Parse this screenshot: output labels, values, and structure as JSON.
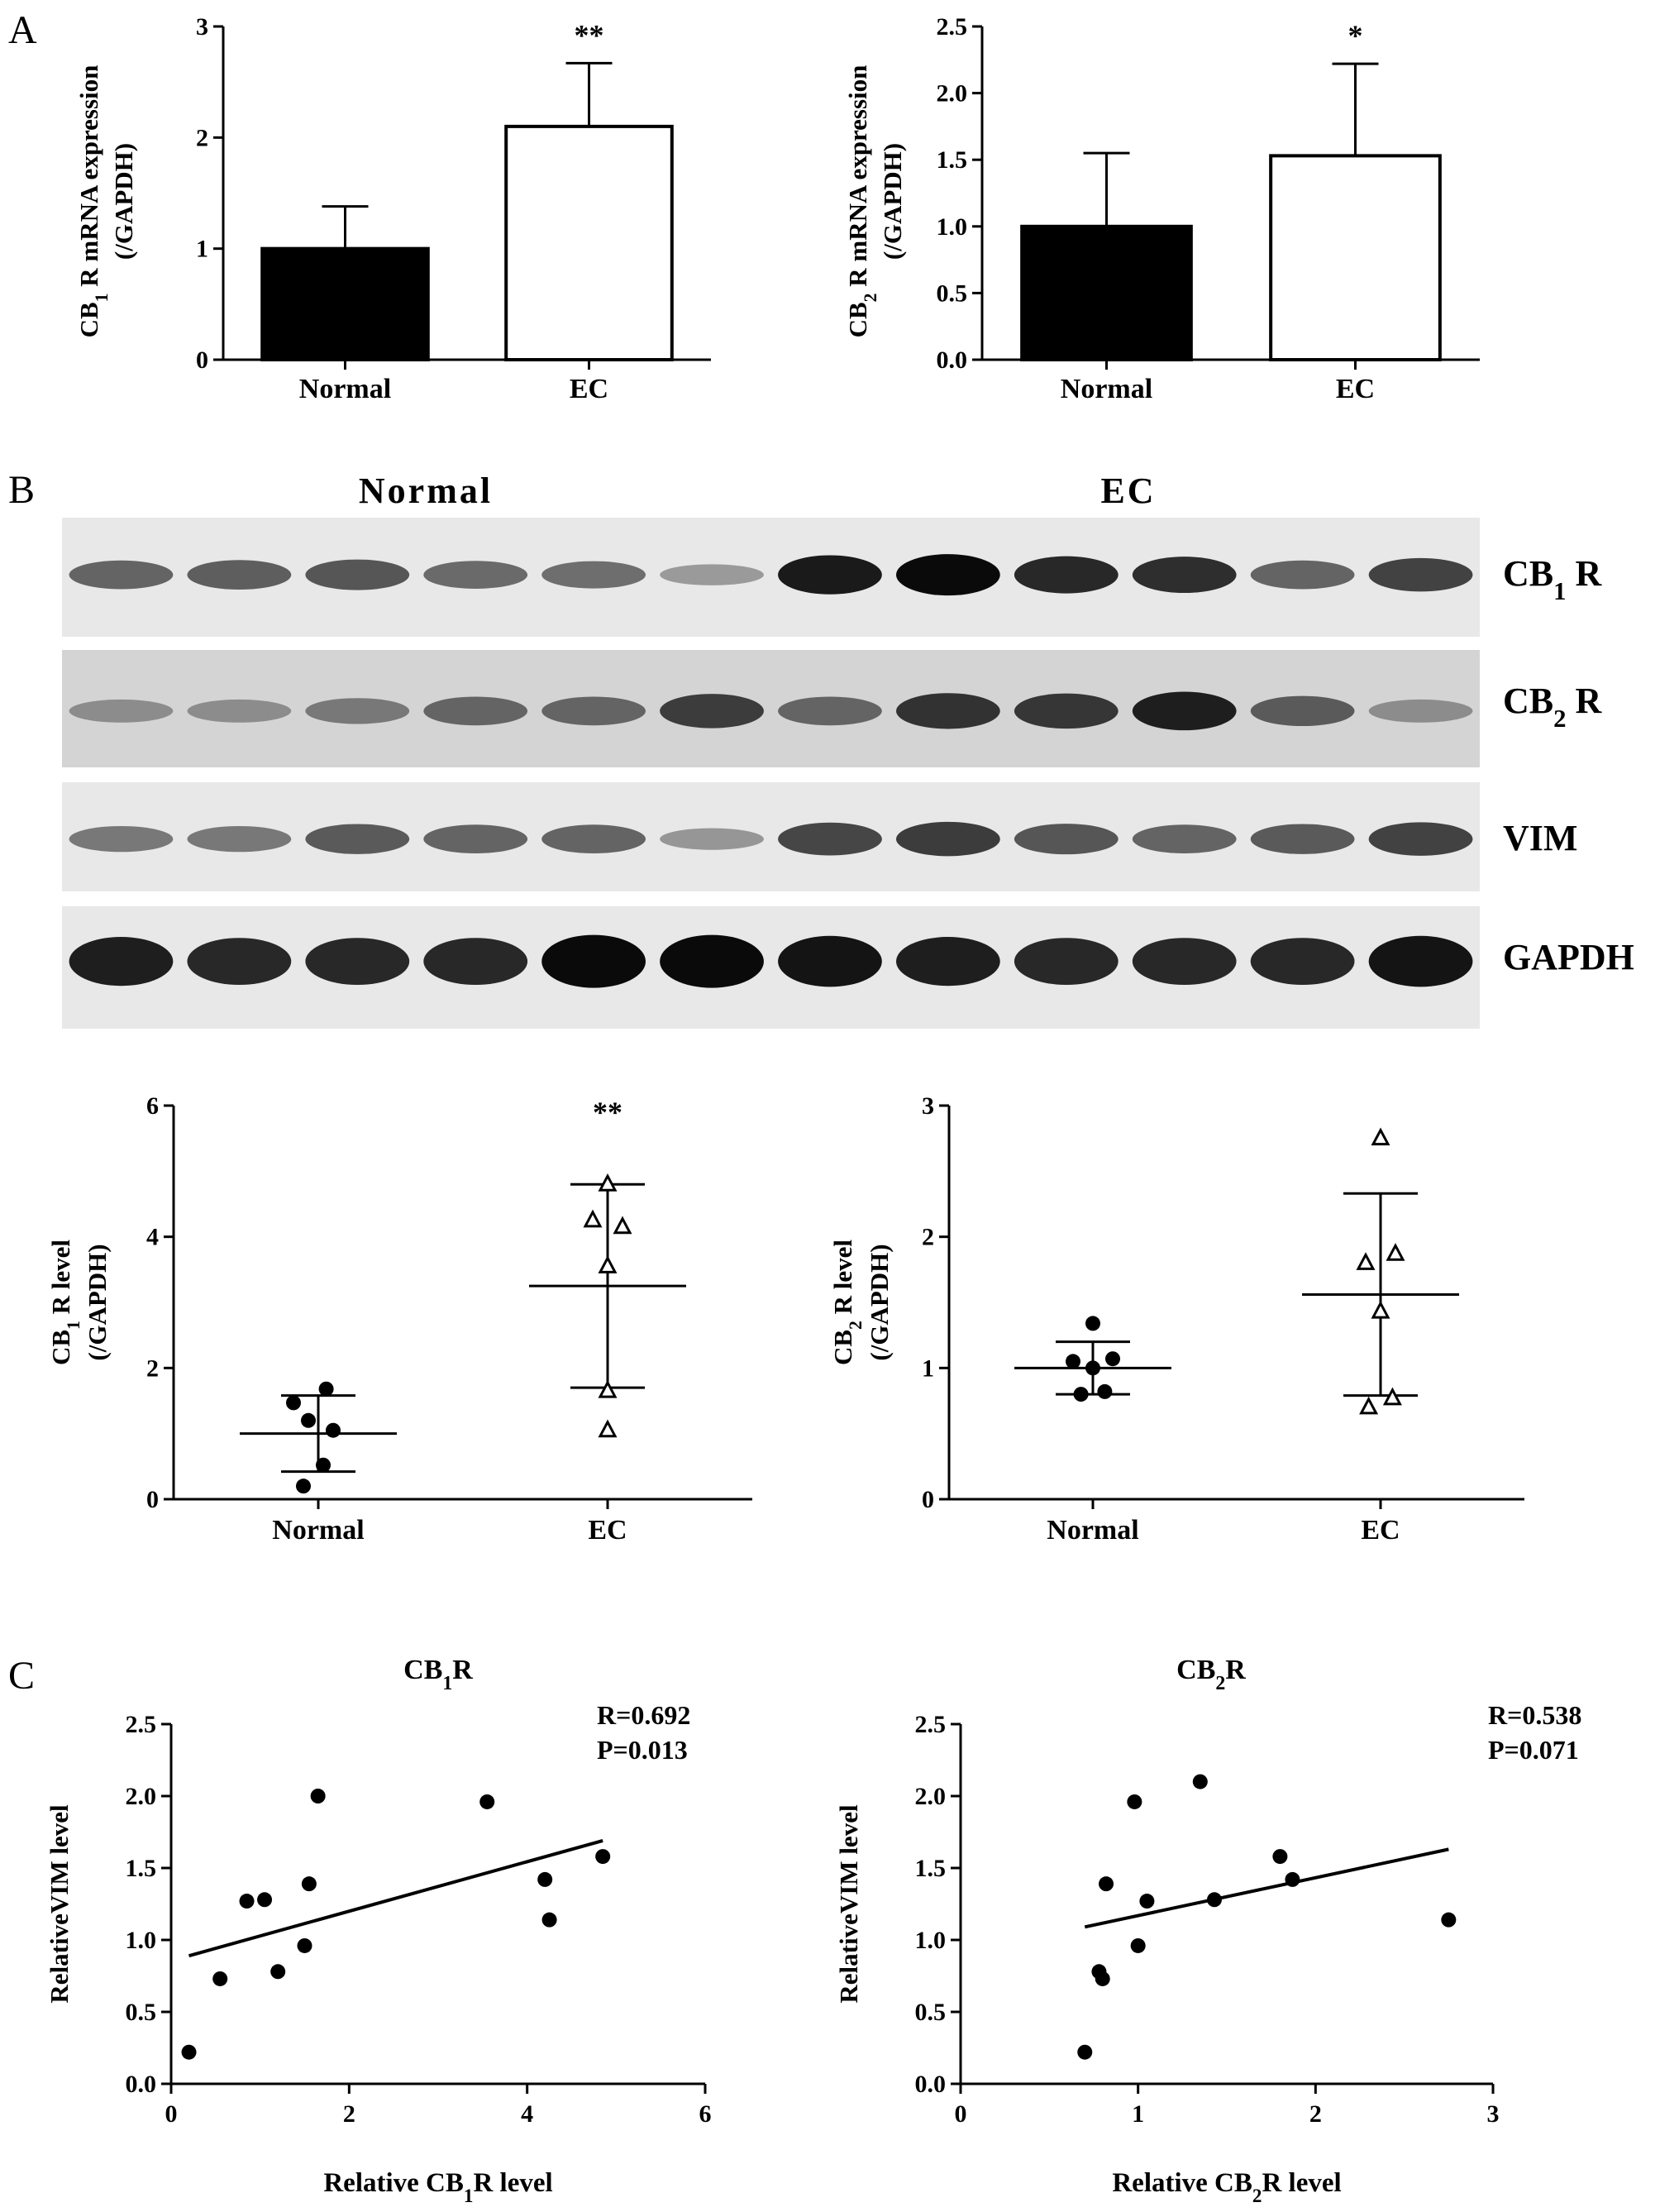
{
  "panels": {
    "a": "A",
    "b": "B",
    "c": "C"
  },
  "blot": {
    "group_labels": [
      "Normal",
      "EC"
    ],
    "rows": [
      {
        "label": "CB",
        "sub": "1",
        "suffix": " R",
        "lanes": [
          0.55,
          0.58,
          0.62,
          0.52,
          0.5,
          0.28,
          0.92,
          1.0,
          0.85,
          0.82,
          0.55,
          0.72
        ]
      },
      {
        "label": "CB",
        "sub": "2",
        "suffix": " R",
        "lanes": [
          0.35,
          0.35,
          0.45,
          0.55,
          0.55,
          0.75,
          0.55,
          0.8,
          0.78,
          0.9,
          0.6,
          0.35
        ]
      },
      {
        "label": "VIM",
        "sub": "",
        "suffix": "",
        "lanes": [
          0.45,
          0.45,
          0.6,
          0.55,
          0.55,
          0.3,
          0.7,
          0.75,
          0.62,
          0.55,
          0.6,
          0.72
        ]
      },
      {
        "label": "GAPDH",
        "sub": "",
        "suffix": "",
        "lanes": [
          0.9,
          0.85,
          0.85,
          0.85,
          1.0,
          1.0,
          0.95,
          0.9,
          0.85,
          0.85,
          0.85,
          0.95
        ]
      }
    ]
  },
  "chart_data": [
    {
      "id": "a1",
      "type": "bar",
      "categories": [
        "Normal",
        "EC"
      ],
      "values": [
        1.0,
        2.1
      ],
      "errors": [
        0.38,
        0.57
      ],
      "fills": [
        "#000000",
        "#ffffff"
      ],
      "significance": [
        "",
        "**"
      ],
      "ylabel_pre": "CB",
      "ylabel_sub": "1",
      "ylabel_post": " R mRNA expression",
      "ylabel2": "(/GAPDH)",
      "ylim": [
        0,
        3
      ],
      "yticks": [
        "0",
        "1",
        "2",
        "3"
      ]
    },
    {
      "id": "a2",
      "type": "bar",
      "categories": [
        "Normal",
        "EC"
      ],
      "values": [
        1.0,
        1.53
      ],
      "errors": [
        0.55,
        0.69
      ],
      "fills": [
        "#000000",
        "#ffffff"
      ],
      "significance": [
        "",
        "*"
      ],
      "ylabel_pre": "CB",
      "ylabel_sub": "2",
      "ylabel_post": " R mRNA expression",
      "ylabel2": "(/GAPDH)",
      "ylim": [
        0,
        2.5
      ],
      "yticks": [
        "0.0",
        "0.5",
        "1.0",
        "1.5",
        "2.0",
        "2.5"
      ]
    },
    {
      "id": "b1",
      "type": "scatter",
      "categories": [
        "Normal",
        "EC"
      ],
      "series": [
        {
          "name": "Normal",
          "marker": "circle",
          "points": [
            [
              -0.25,
              1.47
            ],
            [
              0.08,
              1.68
            ],
            [
              -0.1,
              1.2
            ],
            [
              0.15,
              1.05
            ],
            [
              0.05,
              0.52
            ],
            [
              -0.15,
              0.2
            ]
          ]
        },
        {
          "name": "EC",
          "marker": "triangle",
          "points": [
            [
              0.0,
              4.8
            ],
            [
              -0.15,
              4.25
            ],
            [
              0.15,
              4.15
            ],
            [
              0.0,
              3.55
            ],
            [
              0.0,
              1.65
            ],
            [
              0.0,
              1.05
            ]
          ]
        }
      ],
      "means": [
        1.0,
        3.25
      ],
      "sd": [
        0.58,
        1.55
      ],
      "significance": [
        "",
        "**"
      ],
      "ylabel_pre": "CB",
      "ylabel_sub": "1",
      "ylabel_post": " R level",
      "ylabel2": "(/GAPDH)",
      "ylim": [
        0,
        6
      ],
      "yticks": [
        "0",
        "2",
        "4",
        "6"
      ]
    },
    {
      "id": "b2",
      "type": "scatter",
      "categories": [
        "Normal",
        "EC"
      ],
      "series": [
        {
          "name": "Normal",
          "marker": "circle",
          "points": [
            [
              0.0,
              1.34
            ],
            [
              -0.2,
              1.05
            ],
            [
              0.2,
              1.07
            ],
            [
              0.0,
              1.0
            ],
            [
              -0.12,
              0.8
            ],
            [
              0.12,
              0.82
            ]
          ]
        },
        {
          "name": "EC",
          "marker": "triangle",
          "points": [
            [
              0.0,
              2.75
            ],
            [
              -0.15,
              1.8
            ],
            [
              0.15,
              1.87
            ],
            [
              0.0,
              1.43
            ],
            [
              -0.12,
              0.7
            ],
            [
              0.12,
              0.77
            ]
          ]
        }
      ],
      "means": [
        1.0,
        1.56
      ],
      "sd": [
        0.2,
        0.77
      ],
      "significance": [
        "",
        ""
      ],
      "ylabel_pre": "CB",
      "ylabel_sub": "2",
      "ylabel_post": " R level",
      "ylabel2": "(/GAPDH)",
      "ylim": [
        0,
        3
      ],
      "yticks": [
        "0",
        "1",
        "2",
        "3"
      ]
    },
    {
      "id": "c1",
      "type": "scatter",
      "title_pre": "CB",
      "title_sub": "1",
      "title_post": "R",
      "stat_r": "R=0.692",
      "stat_p": "P=0.013",
      "x": [
        0.2,
        0.55,
        0.85,
        1.05,
        1.2,
        1.5,
        1.55,
        1.65,
        3.55,
        4.2,
        4.25,
        4.85
      ],
      "y": [
        0.22,
        0.73,
        1.27,
        1.28,
        0.78,
        0.96,
        1.39,
        2.0,
        1.96,
        1.42,
        1.14,
        1.58
      ],
      "fit": [
        [
          0.2,
          0.89
        ],
        [
          4.85,
          1.69
        ]
      ],
      "xlabel_pre": "Relative CB",
      "xlabel_sub": "1",
      "xlabel_post": "R level",
      "ylabel": "RelativeVIM level",
      "xlim": [
        0,
        6
      ],
      "ylim": [
        0,
        2.5
      ],
      "xticks": [
        "0",
        "2",
        "4",
        "6"
      ],
      "yticks": [
        "0.0",
        "0.5",
        "1.0",
        "1.5",
        "2.0",
        "2.5"
      ]
    },
    {
      "id": "c2",
      "type": "scatter",
      "title_pre": "CB",
      "title_sub": "2",
      "title_post": "R",
      "stat_r": "R=0.538",
      "stat_p": "P=0.071",
      "x": [
        0.7,
        0.78,
        0.8,
        0.82,
        0.98,
        1.0,
        1.05,
        1.35,
        1.43,
        1.8,
        1.87,
        2.75
      ],
      "y": [
        0.22,
        0.78,
        0.73,
        1.39,
        1.96,
        0.96,
        1.27,
        2.1,
        1.28,
        1.58,
        1.42,
        1.14
      ],
      "fit": [
        [
          0.7,
          1.09
        ],
        [
          2.75,
          1.63
        ]
      ],
      "xlabel_pre": "Relative CB",
      "xlabel_sub": "2",
      "xlabel_post": "R level",
      "ylabel": "RelativeVIM level",
      "xlim": [
        0,
        3
      ],
      "ylim": [
        0,
        2.5
      ],
      "xticks": [
        "0",
        "1",
        "2",
        "3"
      ],
      "yticks": [
        "0.0",
        "0.5",
        "1.0",
        "1.5",
        "2.0",
        "2.5"
      ]
    }
  ]
}
